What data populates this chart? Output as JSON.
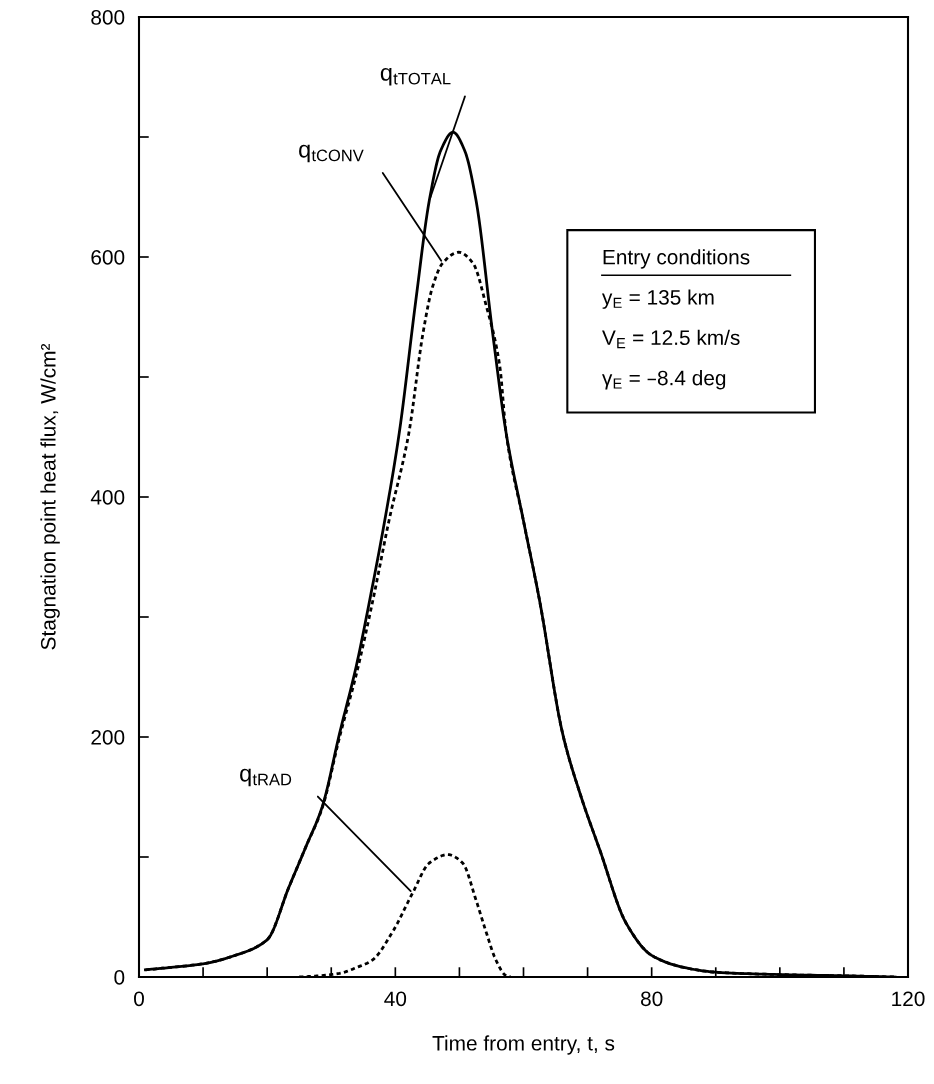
{
  "chart_data": {
    "type": "line",
    "xlabel": "Time from entry, t, s",
    "ylabel": "Stagnation point heat flux, W/cm²",
    "xlim": [
      0,
      120
    ],
    "ylim": [
      0,
      800
    ],
    "xticks": [
      0,
      {
        "value": 10,
        "label": null
      },
      {
        "value": 20,
        "label": null
      },
      {
        "value": 30,
        "label": null
      },
      40,
      {
        "value": 50,
        "label": null
      },
      {
        "value": 60,
        "label": null
      },
      {
        "value": 70,
        "label": null
      },
      80,
      {
        "value": 90,
        "label": null
      },
      {
        "value": 100,
        "label": null
      },
      {
        "value": 110,
        "label": null
      },
      120
    ],
    "yticks": [
      0,
      {
        "value": 100,
        "label": null
      },
      200,
      {
        "value": 300,
        "label": null
      },
      400,
      {
        "value": 500,
        "label": null
      },
      600,
      {
        "value": 700,
        "label": null
      },
      800
    ],
    "grid": false,
    "legend": false,
    "marker": "none",
    "series": [
      {
        "color": "#000000",
        "line_style": "solid",
        "x": [
          1,
          5,
          10,
          15,
          20,
          23.4,
          26,
          28.6,
          31.3,
          33.9,
          36,
          38.5,
          40.6,
          43.2,
          45.3,
          47.1,
          49,
          50.8,
          52.6,
          55.2,
          57.3,
          60,
          62.5,
          66.1,
          69,
          71.9,
          76,
          80,
          85,
          90,
          100,
          110,
          118
        ],
        "values": [
          6,
          8,
          11,
          18,
          31,
          75,
          108,
          142,
          203,
          259,
          314,
          385,
          453,
          564,
          647,
          689,
          704,
          689,
          647,
          536,
          453,
          380,
          314,
          203,
          150,
          106,
          45,
          18,
          8,
          4,
          2,
          1,
          0
        ]
      },
      {
        "color": "#000000",
        "line_style": "dotted",
        "x": [
          1,
          5,
          10,
          15,
          20,
          23.4,
          26,
          28.6,
          31.3,
          33.9,
          36.5,
          39,
          42.1,
          44.3,
          45.8,
          47.4,
          49.9,
          52.1,
          54.2,
          56.3,
          57.3,
          60,
          62.5,
          66.1,
          69,
          71.9,
          76,
          80,
          85,
          90,
          100,
          110,
          118
        ],
        "values": [
          6,
          8,
          11,
          18,
          31,
          75,
          108,
          141,
          200,
          252,
          314,
          380,
          453,
          536,
          575,
          595,
          604,
          595,
          559,
          509,
          453,
          380,
          314,
          203,
          150,
          106,
          45,
          18,
          8,
          4,
          2,
          1,
          0
        ]
      },
      {
        "color": "#000000",
        "line_style": "dotted",
        "x": [
          25,
          28,
          31.3,
          34,
          36.4,
          39.5,
          42.7,
          45.3,
          48.2,
          50.5,
          52.6,
          54.2,
          55.7,
          57.3,
          58
        ],
        "values": [
          0,
          1,
          3,
          8,
          14,
          37,
          70,
          95,
          102,
          95,
          64,
          37,
          14,
          1,
          0
        ]
      }
    ],
    "annotations": [
      {
        "text": "q$_{tTOTAL}$",
        "x": 45.3,
        "y": 647
      },
      {
        "text": "q$_{tCONV}$",
        "x": 47.4,
        "y": 595
      },
      {
        "text": "q$_{tRAD}$",
        "x": 42.7,
        "y": 70
      },
      "Entry conditions",
      "y$_{E}$ = 135 km",
      "V$_{E}$ = 12.5 km/s",
      "γ$_{E}$ = –8.4 deg"
    ]
  }
}
